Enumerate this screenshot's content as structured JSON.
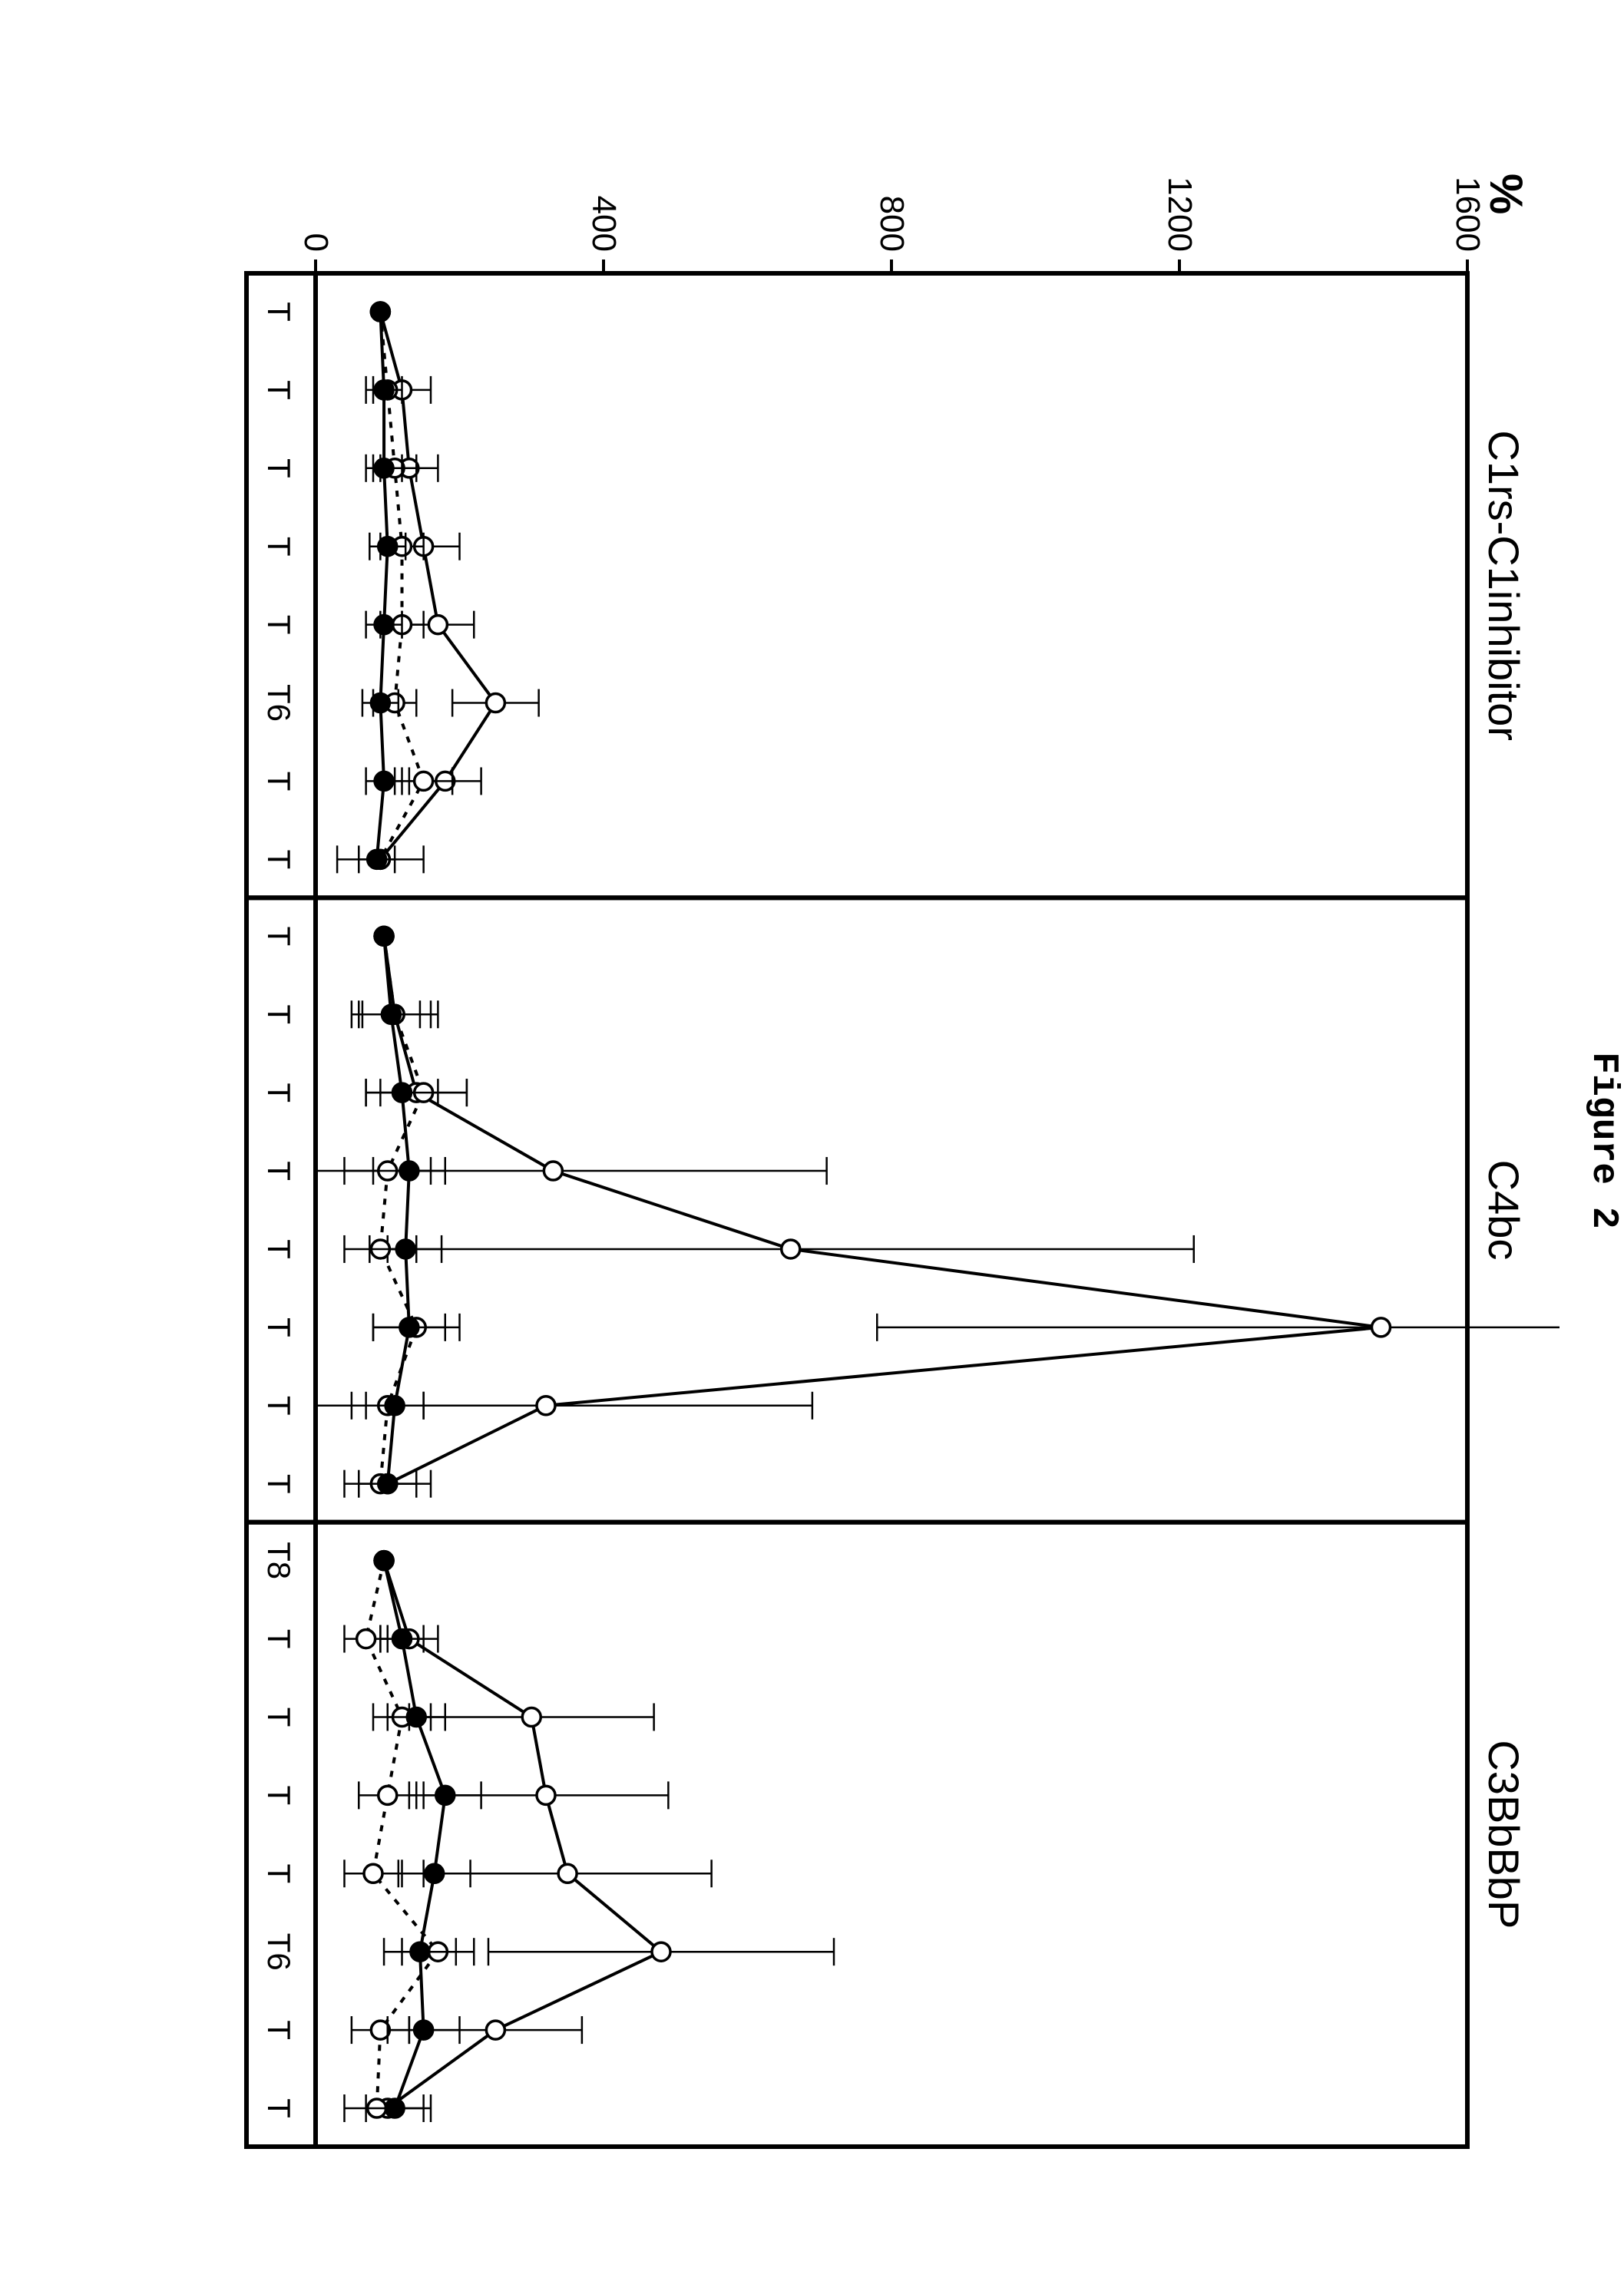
{
  "figure_title": "Figure 2",
  "ylabel": "%",
  "ylim": [
    0,
    1600
  ],
  "yticks": [
    0,
    400,
    800,
    1200,
    1600
  ],
  "background_color": "#ffffff",
  "axis_color": "#000000",
  "line_width_frame": 6,
  "line_width_series": 4,
  "marker_radius": 12,
  "marker_stroke": 3,
  "error_cap_width": 18,
  "panels": [
    {
      "title": "C1rs-C1inhibitor",
      "xticks": [
        "T",
        "T",
        "T",
        "T",
        "T",
        "T6",
        "T",
        "T"
      ],
      "series": [
        {
          "name": "open-circle",
          "marker_fill": "#ffffff",
          "marker_stroke": "#000000",
          "line_color": "#000000",
          "line_dash": "none",
          "points": [
            {
              "x": 0,
              "y": 90,
              "err": 0
            },
            {
              "x": 1,
              "y": 120,
              "err": 40
            },
            {
              "x": 2,
              "y": 130,
              "err": 40
            },
            {
              "x": 3,
              "y": 150,
              "err": 50
            },
            {
              "x": 4,
              "y": 170,
              "err": 50
            },
            {
              "x": 5,
              "y": 250,
              "err": 60
            },
            {
              "x": 6,
              "y": 180,
              "err": 50
            },
            {
              "x": 7,
              "y": 90,
              "err": 60
            }
          ]
        },
        {
          "name": "dotted-open",
          "marker_fill": "#ffffff",
          "marker_stroke": "#000000",
          "line_color": "#000000",
          "line_dash": "8,10",
          "points": [
            {
              "x": 0,
              "y": 90,
              "err": 0
            },
            {
              "x": 1,
              "y": 100,
              "err": 0
            },
            {
              "x": 2,
              "y": 110,
              "err": 30
            },
            {
              "x": 3,
              "y": 120,
              "err": 30
            },
            {
              "x": 4,
              "y": 120,
              "err": 30
            },
            {
              "x": 5,
              "y": 110,
              "err": 30
            },
            {
              "x": 6,
              "y": 150,
              "err": 40
            },
            {
              "x": 7,
              "y": 90,
              "err": 0
            }
          ]
        },
        {
          "name": "solid-filled",
          "marker_fill": "#000000",
          "marker_stroke": "#000000",
          "line_color": "#000000",
          "line_dash": "none",
          "points": [
            {
              "x": 0,
              "y": 90,
              "err": 0
            },
            {
              "x": 1,
              "y": 95,
              "err": 25
            },
            {
              "x": 2,
              "y": 95,
              "err": 25
            },
            {
              "x": 3,
              "y": 100,
              "err": 25
            },
            {
              "x": 4,
              "y": 95,
              "err": 25
            },
            {
              "x": 5,
              "y": 90,
              "err": 25
            },
            {
              "x": 6,
              "y": 95,
              "err": 25
            },
            {
              "x": 7,
              "y": 85,
              "err": 25
            }
          ]
        }
      ]
    },
    {
      "title": "C4bc",
      "xticks": [
        "T",
        "T",
        "T",
        "T",
        "T",
        "T",
        "T",
        "T"
      ],
      "series": [
        {
          "name": "open-circle",
          "marker_fill": "#ffffff",
          "marker_stroke": "#000000",
          "line_color": "#000000",
          "line_dash": "none",
          "points": [
            {
              "x": 0,
              "y": 95,
              "err": 0
            },
            {
              "x": 1,
              "y": 110,
              "err": 60
            },
            {
              "x": 2,
              "y": 140,
              "err": 70
            },
            {
              "x": 3,
              "y": 330,
              "err": 380
            },
            {
              "x": 4,
              "y": 660,
              "err": 560
            },
            {
              "x": 5,
              "y": 1480,
              "err": 700
            },
            {
              "x": 6,
              "y": 320,
              "err": 370
            },
            {
              "x": 7,
              "y": 100,
              "err": 60
            }
          ]
        },
        {
          "name": "dotted-open",
          "marker_fill": "#ffffff",
          "marker_stroke": "#000000",
          "line_color": "#000000",
          "line_dash": "8,10",
          "points": [
            {
              "x": 0,
              "y": 95,
              "err": 0
            },
            {
              "x": 1,
              "y": 110,
              "err": 50
            },
            {
              "x": 2,
              "y": 150,
              "err": 60
            },
            {
              "x": 3,
              "y": 100,
              "err": 60
            },
            {
              "x": 4,
              "y": 90,
              "err": 50
            },
            {
              "x": 5,
              "y": 140,
              "err": 60
            },
            {
              "x": 6,
              "y": 100,
              "err": 50
            },
            {
              "x": 7,
              "y": 90,
              "err": 0
            }
          ]
        },
        {
          "name": "solid-filled",
          "marker_fill": "#000000",
          "marker_stroke": "#000000",
          "line_color": "#000000",
          "line_dash": "none",
          "points": [
            {
              "x": 0,
              "y": 95,
              "err": 0
            },
            {
              "x": 1,
              "y": 105,
              "err": 40
            },
            {
              "x": 2,
              "y": 120,
              "err": 50
            },
            {
              "x": 3,
              "y": 130,
              "err": 50
            },
            {
              "x": 4,
              "y": 125,
              "err": 50
            },
            {
              "x": 5,
              "y": 130,
              "err": 50
            },
            {
              "x": 6,
              "y": 110,
              "err": 40
            },
            {
              "x": 7,
              "y": 100,
              "err": 40
            }
          ]
        }
      ]
    },
    {
      "title": "C3BbBbP",
      "xticks": [
        "T8",
        "T",
        "T",
        "T",
        "T",
        "T6",
        "T",
        "T"
      ],
      "series": [
        {
          "name": "open-circle",
          "marker_fill": "#ffffff",
          "marker_stroke": "#000000",
          "line_color": "#000000",
          "line_dash": "none",
          "points": [
            {
              "x": 0,
              "y": 95,
              "err": 0
            },
            {
              "x": 1,
              "y": 130,
              "err": 40
            },
            {
              "x": 2,
              "y": 300,
              "err": 170
            },
            {
              "x": 3,
              "y": 320,
              "err": 170
            },
            {
              "x": 4,
              "y": 350,
              "err": 200
            },
            {
              "x": 5,
              "y": 480,
              "err": 240
            },
            {
              "x": 6,
              "y": 250,
              "err": 120
            },
            {
              "x": 7,
              "y": 100,
              "err": 60
            }
          ]
        },
        {
          "name": "dotted-open",
          "marker_fill": "#ffffff",
          "marker_stroke": "#000000",
          "line_color": "#000000",
          "line_dash": "8,10",
          "points": [
            {
              "x": 0,
              "y": 95,
              "err": 0
            },
            {
              "x": 1,
              "y": 70,
              "err": 30
            },
            {
              "x": 2,
              "y": 120,
              "err": 40
            },
            {
              "x": 3,
              "y": 100,
              "err": 40
            },
            {
              "x": 4,
              "y": 80,
              "err": 40
            },
            {
              "x": 5,
              "y": 170,
              "err": 50
            },
            {
              "x": 6,
              "y": 90,
              "err": 40
            },
            {
              "x": 7,
              "y": 85,
              "err": 0
            }
          ]
        },
        {
          "name": "solid-filled",
          "marker_fill": "#000000",
          "marker_stroke": "#000000",
          "line_color": "#000000",
          "line_dash": "none",
          "points": [
            {
              "x": 0,
              "y": 95,
              "err": 0
            },
            {
              "x": 1,
              "y": 120,
              "err": 30
            },
            {
              "x": 2,
              "y": 140,
              "err": 40
            },
            {
              "x": 3,
              "y": 180,
              "err": 50
            },
            {
              "x": 4,
              "y": 165,
              "err": 50
            },
            {
              "x": 5,
              "y": 145,
              "err": 50
            },
            {
              "x": 6,
              "y": 150,
              "err": 50
            },
            {
              "x": 7,
              "y": 110,
              "err": 40
            }
          ]
        }
      ]
    }
  ]
}
